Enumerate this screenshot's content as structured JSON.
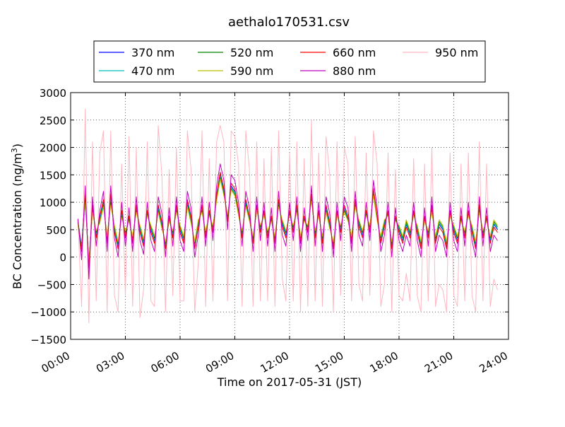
{
  "chart_data": {
    "type": "line",
    "title": "aethalo170531.csv",
    "xlabel": "Time on 2017-05-31 (JST)",
    "ylabel_main": "BC Concentration (ng/m",
    "ylabel_sup": "3",
    "ylabel_close": ")",
    "xlim": [
      "00:00",
      "24:00"
    ],
    "ylim": [
      -1500,
      3000
    ],
    "grid": true,
    "legend_position": "top",
    "x_ticks": [
      "00:00",
      "03:00",
      "06:00",
      "09:00",
      "12:00",
      "15:00",
      "18:00",
      "21:00",
      "24:00"
    ],
    "y_ticks": [
      -1500,
      -1000,
      -500,
      0,
      500,
      1000,
      1500,
      2000,
      2500,
      3000
    ],
    "y_tick_labels": [
      "−1500",
      "−1000",
      "−500",
      "0",
      "500",
      "1000",
      "1500",
      "2000",
      "2500",
      "3000"
    ],
    "x_hours": [
      0.4,
      0.6,
      0.8,
      1.0,
      1.2,
      1.4,
      1.6,
      1.8,
      2.0,
      2.2,
      2.4,
      2.6,
      2.8,
      3.0,
      3.2,
      3.4,
      3.6,
      3.8,
      4.0,
      4.2,
      4.4,
      4.6,
      4.8,
      5.0,
      5.2,
      5.4,
      5.6,
      5.8,
      6.0,
      6.2,
      6.4,
      6.6,
      6.8,
      7.0,
      7.2,
      7.4,
      7.6,
      7.8,
      8.0,
      8.2,
      8.4,
      8.6,
      8.8,
      9.0,
      9.2,
      9.4,
      9.6,
      9.8,
      10.0,
      10.2,
      10.4,
      10.6,
      10.8,
      11.0,
      11.2,
      11.4,
      11.6,
      11.8,
      12.0,
      12.2,
      12.4,
      12.6,
      12.8,
      13.0,
      13.2,
      13.4,
      13.6,
      13.8,
      14.0,
      14.2,
      14.4,
      14.6,
      14.8,
      15.0,
      15.2,
      15.4,
      15.6,
      15.8,
      16.0,
      16.2,
      16.4,
      16.6,
      16.8,
      17.0,
      17.2,
      17.4,
      17.6,
      17.8,
      18.0,
      18.2,
      18.4,
      18.6,
      18.8,
      19.0,
      19.2,
      19.4,
      19.6,
      19.8,
      20.0,
      20.2,
      20.4,
      20.6,
      20.8,
      21.0,
      21.2,
      21.4,
      21.6,
      21.8,
      22.0,
      22.2,
      22.4,
      22.6,
      22.8,
      23.0,
      23.2,
      23.4,
      23.6,
      23.8
    ],
    "series": [
      {
        "name": "370 nm",
        "color": "#0000ff",
        "width": 1,
        "values": [
          650,
          200,
          1100,
          -150,
          900,
          400,
          700,
          1000,
          300,
          1100,
          500,
          200,
          800,
          400,
          700,
          300,
          900,
          500,
          250,
          800,
          500,
          300,
          900,
          600,
          200,
          700,
          400,
          900,
          500,
          300,
          1000,
          700,
          200,
          600,
          900,
          400,
          800,
          500,
          1100,
          1500,
          1200,
          700,
          1300,
          1200,
          800,
          400,
          1000,
          700,
          300,
          900,
          500,
          800,
          400,
          700,
          300,
          1000,
          600,
          400,
          800,
          500,
          900,
          300,
          700,
          500,
          1100,
          400,
          800,
          300,
          900,
          600,
          200,
          800,
          500,
          900,
          700,
          300,
          1000,
          600,
          400,
          800,
          500,
          1200,
          700,
          300,
          600,
          800,
          200,
          700,
          500,
          300,
          600,
          400,
          800,
          500,
          200,
          700,
          400,
          900,
          300,
          600,
          500,
          200,
          800,
          500,
          300,
          700,
          400,
          800,
          500,
          200,
          900,
          400,
          700,
          300,
          600,
          500
        ]
      },
      {
        "name": "470 nm",
        "color": "#00bfbf",
        "width": 1,
        "values": [
          640,
          180,
          1080,
          -120,
          880,
          420,
          680,
          980,
          320,
          1060,
          520,
          220,
          780,
          420,
          690,
          330,
          880,
          520,
          270,
          790,
          520,
          320,
          880,
          580,
          220,
          690,
          420,
          880,
          520,
          320,
          980,
          680,
          220,
          620,
          880,
          420,
          790,
          520,
          1080,
          1480,
          1180,
          720,
          1280,
          1180,
          790,
          420,
          980,
          690,
          320,
          890,
          520,
          790,
          420,
          690,
          320,
          980,
          620,
          420,
          790,
          520,
          880,
          320,
          690,
          520,
          1080,
          420,
          790,
          320,
          880,
          580,
          220,
          790,
          520,
          880,
          690,
          320,
          980,
          620,
          420,
          790,
          520,
          1180,
          690,
          320,
          620,
          790,
          220,
          690,
          520,
          320,
          620,
          420,
          790,
          520,
          220,
          690,
          420,
          880,
          320,
          620,
          520,
          220,
          790,
          520,
          320,
          690,
          420,
          790,
          520,
          220,
          880,
          420,
          690,
          320,
          620,
          520
        ]
      },
      {
        "name": "520 nm",
        "color": "#008000",
        "width": 1,
        "values": [
          620,
          150,
          1050,
          -100,
          850,
          450,
          650,
          950,
          350,
          1000,
          550,
          250,
          750,
          450,
          680,
          350,
          850,
          550,
          300,
          780,
          550,
          350,
          850,
          550,
          250,
          680,
          450,
          850,
          550,
          350,
          950,
          650,
          250,
          650,
          850,
          450,
          780,
          550,
          1050,
          1450,
          1150,
          750,
          1250,
          1150,
          780,
          450,
          950,
          680,
          350,
          880,
          550,
          780,
          450,
          680,
          350,
          950,
          650,
          450,
          780,
          550,
          850,
          350,
          680,
          550,
          1050,
          450,
          780,
          350,
          850,
          550,
          250,
          780,
          550,
          850,
          680,
          350,
          950,
          650,
          450,
          780,
          550,
          1150,
          680,
          350,
          650,
          780,
          250,
          680,
          550,
          350,
          650,
          450,
          780,
          550,
          250,
          680,
          450,
          850,
          350,
          650,
          550,
          250,
          780,
          550,
          350,
          680,
          450,
          780,
          550,
          250,
          850,
          450,
          680,
          350,
          650,
          550
        ]
      },
      {
        "name": "590 nm",
        "color": "#bfbf00",
        "width": 1,
        "values": [
          600,
          120,
          1000,
          -80,
          820,
          480,
          620,
          920,
          380,
          950,
          580,
          280,
          720,
          480,
          660,
          380,
          820,
          580,
          330,
          760,
          580,
          380,
          820,
          520,
          280,
          660,
          480,
          820,
          580,
          380,
          920,
          620,
          280,
          680,
          820,
          480,
          760,
          580,
          1020,
          1420,
          1120,
          780,
          1220,
          1120,
          760,
          480,
          920,
          660,
          380,
          860,
          580,
          760,
          480,
          660,
          380,
          920,
          680,
          480,
          760,
          580,
          820,
          380,
          660,
          580,
          1020,
          480,
          760,
          380,
          820,
          520,
          280,
          760,
          580,
          820,
          660,
          380,
          920,
          680,
          480,
          760,
          580,
          1120,
          660,
          380,
          680,
          760,
          280,
          660,
          580,
          380,
          680,
          480,
          760,
          580,
          280,
          660,
          480,
          820,
          380,
          680,
          580,
          280,
          760,
          580,
          380,
          660,
          480,
          760,
          580,
          280,
          820,
          480,
          660,
          380,
          680,
          580
        ]
      },
      {
        "name": "660 nm",
        "color": "#ff0000",
        "width": 1,
        "values": [
          680,
          100,
          1150,
          -200,
          950,
          350,
          750,
          1050,
          250,
          1150,
          450,
          150,
          850,
          350,
          750,
          250,
          950,
          450,
          200,
          850,
          450,
          250,
          950,
          650,
          150,
          750,
          350,
          950,
          450,
          250,
          1050,
          750,
          150,
          550,
          950,
          350,
          850,
          450,
          1150,
          1550,
          1250,
          650,
          1350,
          1250,
          850,
          350,
          1050,
          750,
          250,
          950,
          450,
          850,
          350,
          750,
          250,
          1050,
          550,
          350,
          850,
          450,
          950,
          250,
          750,
          450,
          1150,
          350,
          850,
          250,
          950,
          650,
          150,
          850,
          450,
          950,
          750,
          250,
          1050,
          550,
          350,
          850,
          450,
          1250,
          750,
          250,
          550,
          850,
          150,
          750,
          450,
          250,
          550,
          350,
          850,
          450,
          150,
          750,
          350,
          950,
          250,
          550,
          450,
          150,
          850,
          450,
          250,
          750,
          350,
          850,
          450,
          150,
          950,
          350,
          750,
          250,
          550,
          450
        ]
      },
      {
        "name": "880 nm",
        "color": "#bf00bf",
        "width": 1,
        "values": [
          700,
          -50,
          1300,
          -400,
          1100,
          200,
          850,
          1200,
          100,
          1300,
          350,
          0,
          1000,
          200,
          900,
          100,
          1100,
          300,
          50,
          1000,
          300,
          100,
          1100,
          800,
          0,
          900,
          200,
          1100,
          300,
          100,
          1200,
          900,
          0,
          400,
          1100,
          200,
          1000,
          300,
          1300,
          1700,
          1400,
          500,
          1500,
          1400,
          1000,
          200,
          1200,
          900,
          100,
          1100,
          300,
          1000,
          200,
          900,
          100,
          1200,
          400,
          200,
          1000,
          300,
          1100,
          100,
          900,
          300,
          1300,
          200,
          1000,
          100,
          1100,
          800,
          0,
          1000,
          300,
          1100,
          900,
          100,
          1200,
          400,
          200,
          1000,
          300,
          1400,
          900,
          100,
          400,
          1000,
          0,
          900,
          300,
          100,
          400,
          200,
          1000,
          300,
          0,
          900,
          200,
          1100,
          100,
          400,
          300,
          0,
          1000,
          300,
          100,
          900,
          200,
          1000,
          300,
          0,
          1100,
          200,
          900,
          100,
          400,
          300
        ]
      },
      {
        "name": "950 nm",
        "color": "#ffb6c1",
        "width": 1,
        "values": [
          700,
          -900,
          2700,
          -1200,
          2100,
          -800,
          1900,
          2300,
          -1000,
          2300,
          -700,
          -1000,
          1700,
          -700,
          2200,
          -900,
          2000,
          -1100,
          -600,
          2100,
          -800,
          -900,
          2400,
          1500,
          -1000,
          1600,
          -700,
          2000,
          -800,
          -800,
          2300,
          1600,
          -1000,
          -100,
          2300,
          -900,
          1800,
          -800,
          2100,
          2400,
          2100,
          -800,
          2300,
          2200,
          1700,
          -900,
          2300,
          1600,
          -900,
          2100,
          -800,
          1800,
          -800,
          2000,
          -900,
          2300,
          -400,
          -800,
          1900,
          -800,
          2100,
          -1000,
          1800,
          -900,
          2500,
          -800,
          1900,
          -900,
          2200,
          1500,
          -1000,
          2100,
          -700,
          2000,
          1700,
          -800,
          2200,
          -500,
          -800,
          1900,
          -700,
          2300,
          1700,
          -900,
          -500,
          1900,
          -1000,
          1600,
          -700,
          -800,
          -300,
          -800,
          1800,
          -700,
          -1000,
          1700,
          -800,
          2000,
          -900,
          -500,
          -600,
          -1000,
          1900,
          -700,
          -900,
          1700,
          -800,
          1900,
          -700,
          -1000,
          2100,
          -800,
          1700,
          -900,
          -400,
          -600
        ]
      }
    ]
  }
}
